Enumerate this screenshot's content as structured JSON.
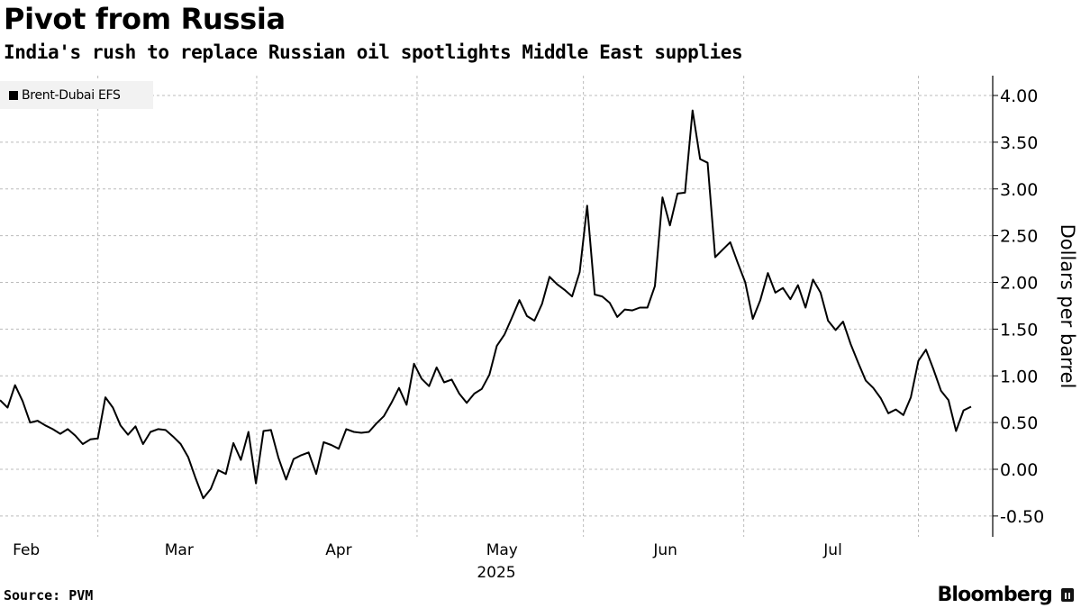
{
  "chart_data": {
    "type": "line",
    "title": "Pivot from Russia",
    "subtitle": "India's rush to replace Russian oil spotlights Middle East supplies",
    "ylabel": "Dollars per barrel",
    "xlabel": "2025",
    "ylim": [
      -0.7,
      4.3
    ],
    "yticks": [
      4.0,
      3.5,
      3.0,
      2.5,
      2.0,
      1.5,
      1.0,
      0.5,
      0.0,
      -0.5
    ],
    "ytick_labels": [
      "4.00",
      "3.50",
      "3.00",
      "2.50",
      "2.00",
      "1.50",
      "1.00",
      "0.50",
      "0.00",
      "-0.50"
    ],
    "grid": true,
    "legend_placement": "top-left",
    "x_unit": "trading-day index",
    "months": [
      {
        "label": "Feb",
        "start": -6.5,
        "end": 13.0
      },
      {
        "label": "Mar",
        "start": 13.0,
        "end": 34.1
      },
      {
        "label": "Apr",
        "start": 34.1,
        "end": 55.4
      },
      {
        "label": "May",
        "start": 55.4,
        "end": 77.5
      },
      {
        "label": "Jun",
        "start": 77.5,
        "end": 98.8
      },
      {
        "label": "Jul",
        "start": 98.8,
        "end": 122.0
      }
    ],
    "month_boundaries": [
      13.0,
      34.1,
      55.4,
      77.5,
      98.8,
      122.0
    ],
    "series": [
      {
        "name": "Brent-Dubai EFS",
        "color": "#000000",
        "values": [
          0.74,
          0.66,
          0.9,
          0.73,
          0.5,
          0.52,
          0.47,
          0.43,
          0.38,
          0.43,
          0.36,
          0.27,
          0.32,
          0.33,
          0.77,
          0.66,
          0.47,
          0.37,
          0.46,
          0.27,
          0.4,
          0.43,
          0.42,
          0.35,
          0.27,
          0.13,
          -0.1,
          -0.31,
          -0.21,
          -0.01,
          -0.05,
          0.28,
          0.1,
          0.4,
          -0.15,
          0.41,
          0.42,
          0.12,
          -0.11,
          0.11,
          0.15,
          0.18,
          -0.05,
          0.29,
          0.26,
          0.22,
          0.43,
          0.4,
          0.39,
          0.4,
          0.49,
          0.57,
          0.71,
          0.87,
          0.69,
          1.13,
          0.97,
          0.89,
          1.09,
          0.93,
          0.96,
          0.81,
          0.71,
          0.81,
          0.86,
          1.01,
          1.32,
          1.44,
          1.62,
          1.81,
          1.64,
          1.59,
          1.77,
          2.06,
          1.98,
          1.92,
          1.85,
          2.11,
          2.82,
          1.87,
          1.85,
          1.78,
          1.63,
          1.71,
          1.7,
          1.73,
          1.73,
          1.96,
          2.91,
          2.61,
          2.95,
          2.96,
          3.84,
          3.32,
          3.28,
          2.27,
          2.35,
          2.43,
          2.21,
          2.0,
          1.61,
          1.81,
          2.1,
          1.89,
          1.94,
          1.82,
          1.97,
          1.73,
          2.03,
          1.89,
          1.59,
          1.49,
          1.58,
          1.34,
          1.14,
          0.95,
          0.87,
          0.76,
          0.6,
          0.64,
          0.58,
          0.77,
          1.16,
          1.28,
          1.07,
          0.84,
          0.74,
          0.41,
          0.63,
          0.67
        ]
      }
    ]
  },
  "footer": {
    "source": "Source: PVM",
    "brand": "Bloomberg"
  }
}
